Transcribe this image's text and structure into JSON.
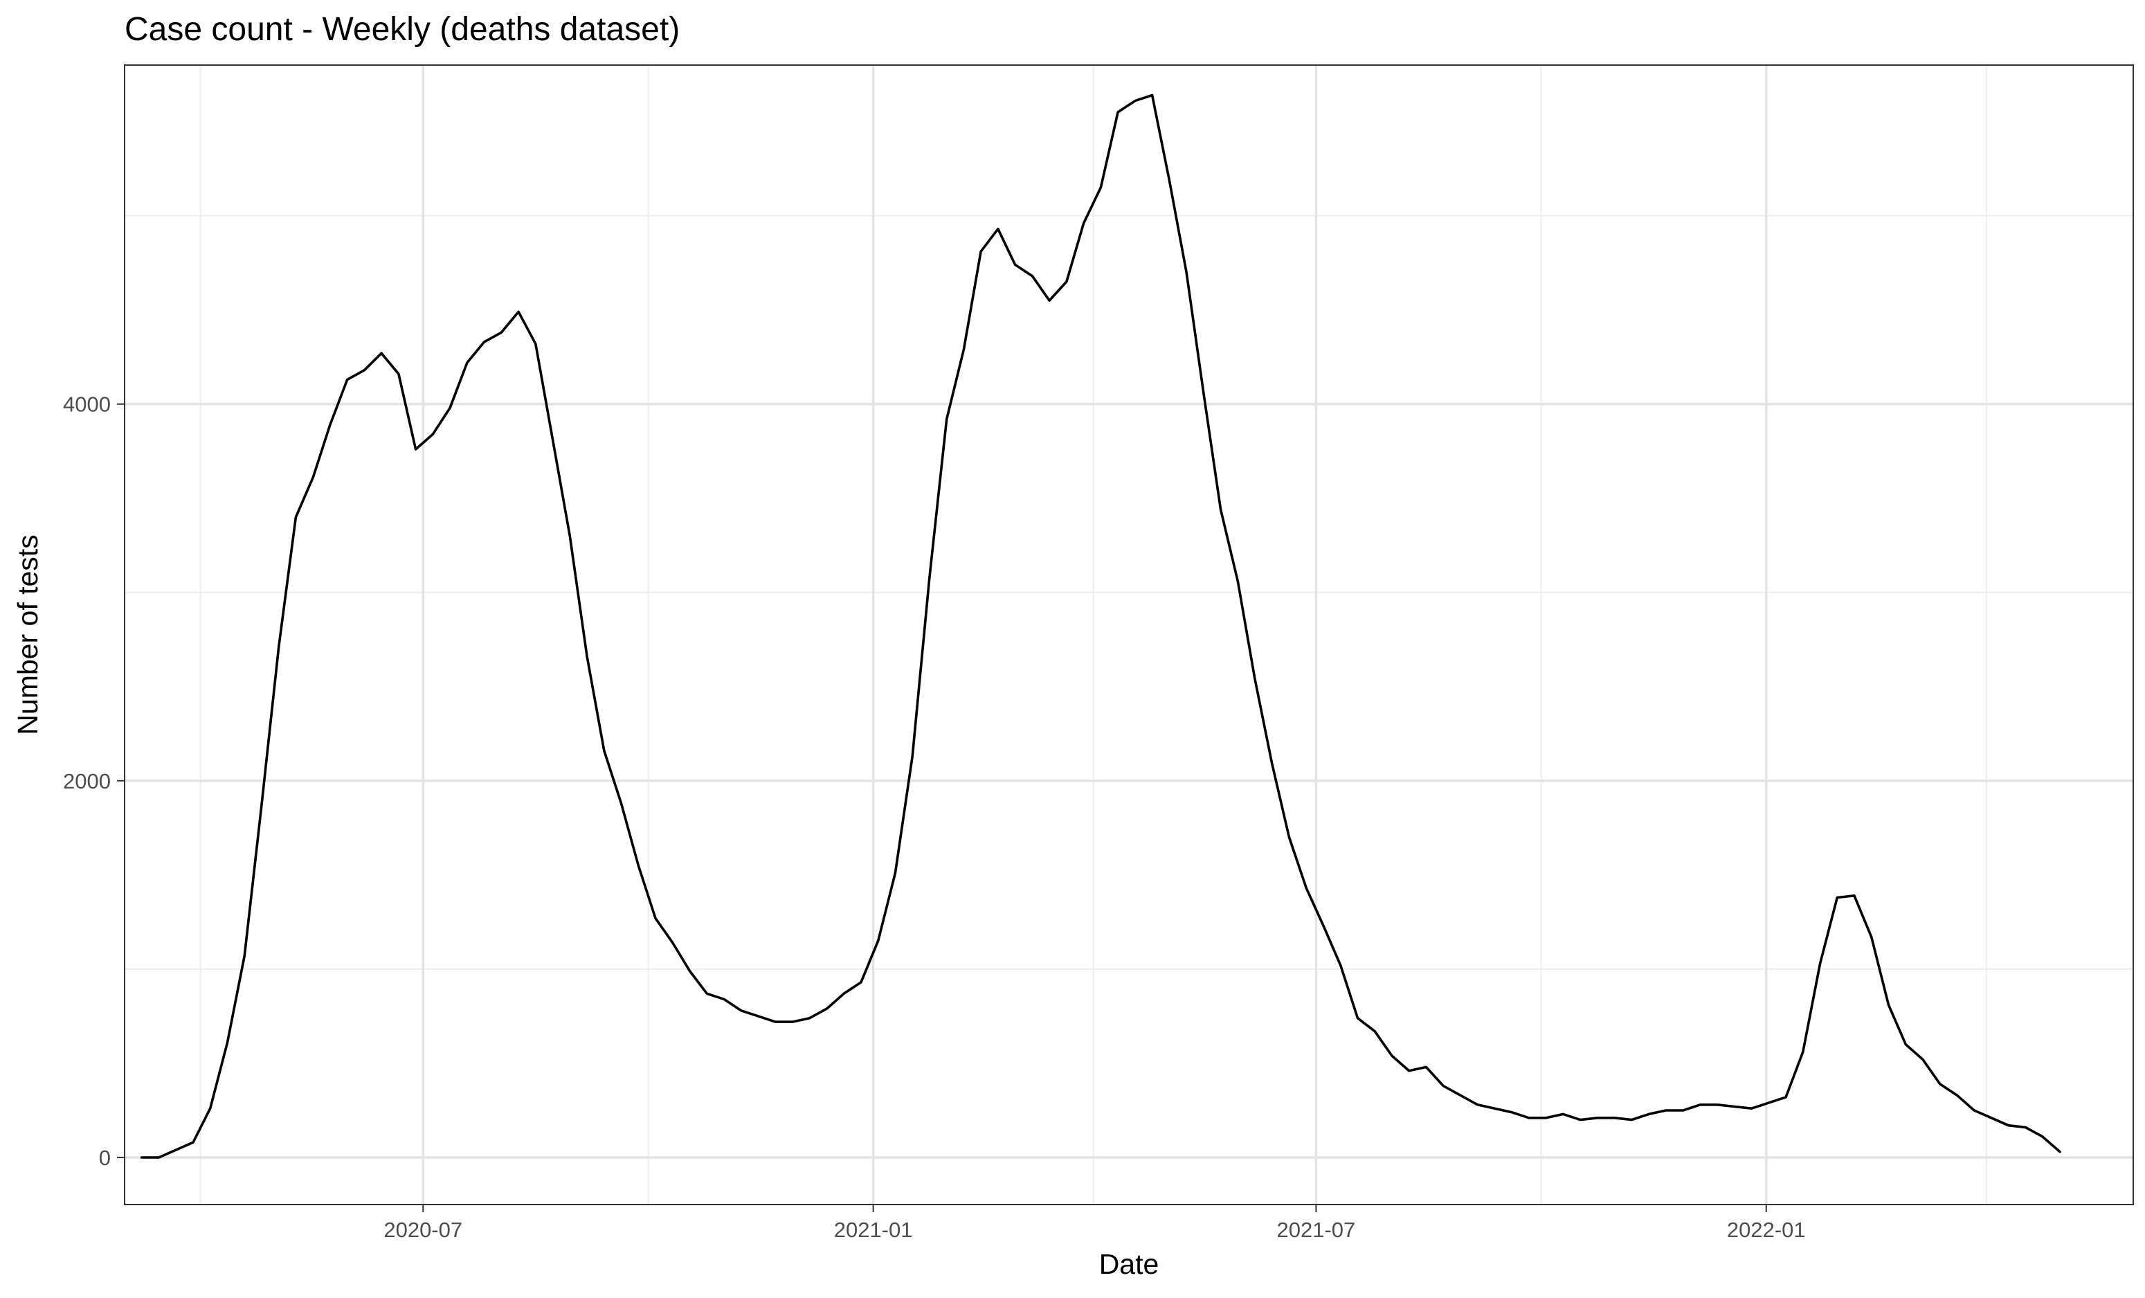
{
  "chart_data": {
    "type": "line",
    "title": "Case count - Weekly (deaths dataset)",
    "xlabel": "Date",
    "ylabel": "Number of tests",
    "x_scale": "date",
    "xlim": [
      "2020-03-01",
      "2022-05-31"
    ],
    "ylim": [
      -250,
      5800
    ],
    "x_ticks": [
      {
        "value": "2020-07-01",
        "label": "2020-07"
      },
      {
        "value": "2021-01-01",
        "label": "2021-01"
      },
      {
        "value": "2021-07-01",
        "label": "2021-07"
      },
      {
        "value": "2022-01-01",
        "label": "2022-01"
      }
    ],
    "x_minor_ticks": [
      "2020-04-01",
      "2020-10-01",
      "2021-04-01",
      "2021-10-01",
      "2022-04-01"
    ],
    "y_ticks": [
      {
        "value": 0,
        "label": "0"
      },
      {
        "value": 2000,
        "label": "2000"
      },
      {
        "value": 4000,
        "label": "4000"
      }
    ],
    "y_minor_ticks": [
      1000,
      3000,
      5000
    ],
    "grid": true,
    "legend": "none",
    "series": [
      {
        "color": "#000000",
        "x": [
          "2020-03-08",
          "2020-03-15",
          "2020-03-22",
          "2020-03-29",
          "2020-04-05",
          "2020-04-12",
          "2020-04-19",
          "2020-04-26",
          "2020-05-03",
          "2020-05-10",
          "2020-05-17",
          "2020-05-24",
          "2020-05-31",
          "2020-06-07",
          "2020-06-14",
          "2020-06-21",
          "2020-06-28",
          "2020-07-05",
          "2020-07-12",
          "2020-07-19",
          "2020-07-26",
          "2020-08-02",
          "2020-08-09",
          "2020-08-16",
          "2020-08-23",
          "2020-08-30",
          "2020-09-06",
          "2020-09-13",
          "2020-09-20",
          "2020-09-27",
          "2020-10-04",
          "2020-10-11",
          "2020-10-18",
          "2020-10-25",
          "2020-11-01",
          "2020-11-08",
          "2020-11-15",
          "2020-11-22",
          "2020-11-29",
          "2020-12-06",
          "2020-12-13",
          "2020-12-20",
          "2020-12-27",
          "2021-01-03",
          "2021-01-10",
          "2021-01-17",
          "2021-01-24",
          "2021-01-31",
          "2021-02-07",
          "2021-02-14",
          "2021-02-21",
          "2021-02-28",
          "2021-03-07",
          "2021-03-14",
          "2021-03-21",
          "2021-03-28",
          "2021-04-04",
          "2021-04-11",
          "2021-04-18",
          "2021-04-25",
          "2021-05-02",
          "2021-05-09",
          "2021-05-16",
          "2021-05-23",
          "2021-05-30",
          "2021-06-06",
          "2021-06-13",
          "2021-06-20",
          "2021-06-27",
          "2021-07-04",
          "2021-07-11",
          "2021-07-18",
          "2021-07-25",
          "2021-08-01",
          "2021-08-08",
          "2021-08-15",
          "2021-08-22",
          "2021-08-29",
          "2021-09-05",
          "2021-09-12",
          "2021-09-19",
          "2021-09-26",
          "2021-10-03",
          "2021-10-10",
          "2021-10-17",
          "2021-10-24",
          "2021-10-31",
          "2021-11-07",
          "2021-11-14",
          "2021-11-21",
          "2021-11-28",
          "2021-12-05",
          "2021-12-12",
          "2021-12-19",
          "2021-12-26",
          "2022-01-02",
          "2022-01-09",
          "2022-01-16",
          "2022-01-23",
          "2022-01-30",
          "2022-02-06",
          "2022-02-13",
          "2022-02-20",
          "2022-02-27",
          "2022-03-06",
          "2022-03-13",
          "2022-03-20",
          "2022-03-27",
          "2022-04-03",
          "2022-04-10",
          "2022-04-17",
          "2022-04-24",
          "2022-05-01"
        ],
        "y": [
          0,
          0,
          40,
          80,
          260,
          610,
          1070,
          1870,
          2710,
          3400,
          3610,
          3890,
          4130,
          4180,
          4270,
          4160,
          3760,
          3840,
          3980,
          4220,
          4330,
          4380,
          4490,
          4320,
          3810,
          3300,
          2660,
          2160,
          1880,
          1550,
          1270,
          1140,
          990,
          870,
          840,
          780,
          750,
          720,
          720,
          740,
          790,
          870,
          930,
          1150,
          1510,
          2130,
          3080,
          3920,
          4290,
          4810,
          4930,
          4740,
          4680,
          4550,
          4650,
          4960,
          5150,
          5550,
          5610,
          5640,
          5190,
          4700,
          4060,
          3440,
          3060,
          2540,
          2090,
          1700,
          1430,
          1230,
          1020,
          740,
          670,
          540,
          460,
          480,
          380,
          330,
          280,
          260,
          240,
          210,
          210,
          230,
          200,
          210,
          210,
          200,
          230,
          250,
          250,
          280,
          280,
          270,
          260,
          290,
          320,
          560,
          1030,
          1380,
          1390,
          1170,
          810,
          600,
          520,
          390,
          330,
          250,
          210,
          170,
          160,
          110,
          30
        ]
      }
    ]
  }
}
